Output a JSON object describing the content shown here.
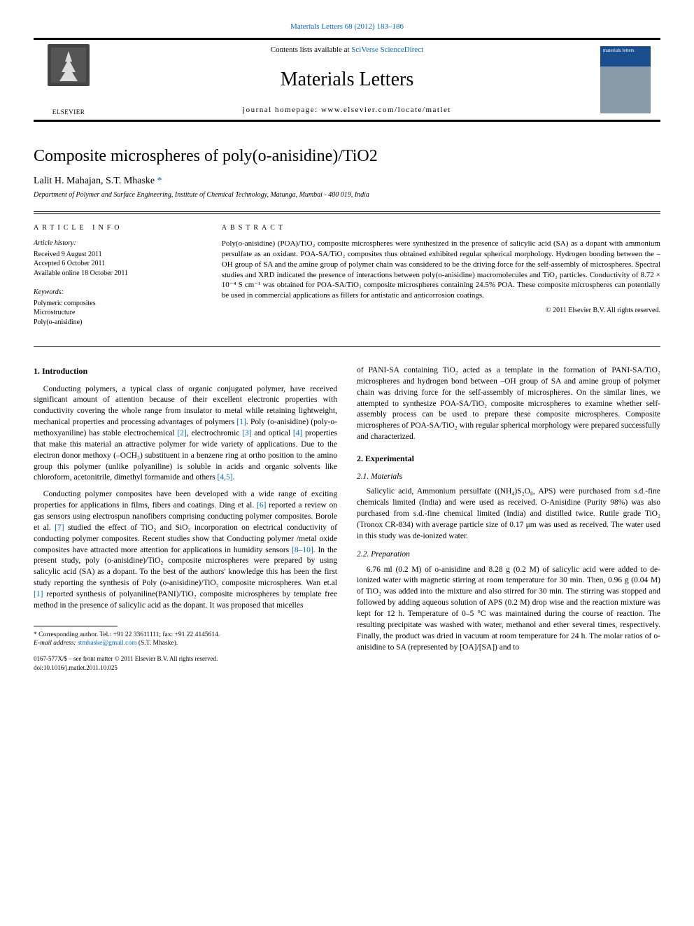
{
  "header": {
    "citation": "Materials Letters 68 (2012) 183–186",
    "contents_prefix": "Contents lists available at ",
    "contents_link": "SciVerse ScienceDirect",
    "journal_title": "Materials Letters",
    "homepage_label": "journal homepage: www.elsevier.com/locate/matlet",
    "publisher": "ELSEVIER",
    "cover_label": "materials letters"
  },
  "article": {
    "title": "Composite microspheres of poly(o-anisidine)/TiO2",
    "authors": "Lalit H. Mahajan, S.T. Mhaske",
    "corr_marker": "*",
    "affiliation": "Department of Polymer and Surface Engineering, Institute of Chemical Technology, Matunga, Mumbai - 400 019, India"
  },
  "meta": {
    "info_label": "article info",
    "history_label": "Article history:",
    "received": "Received 9 August 2011",
    "accepted": "Accepted 6 October 2011",
    "online": "Available online 18 October 2011",
    "keywords_label": "Keywords:",
    "keywords": [
      "Polymeric composites",
      "Microstructure",
      "Poly(o-anisidine)"
    ]
  },
  "abstract": {
    "label": "abstract",
    "text": "Poly(o-anisidine) (POA)/TiO₂ composite microspheres were synthesized in the presence of salicylic acid (SA) as a dopant with ammonium persulfate as an oxidant. POA-SA/TiO₂ composites thus obtained exhibited regular spherical morphology. Hydrogen bonding between the –OH group of SA and the amine group of polymer chain was considered to be the driving force for the self-assembly of microspheres. Spectral studies and XRD indicated the presence of interactions between poly(o-anisidine) macromolecules and TiO₂ particles. Conductivity of 8.72 × 10⁻⁴ S cm⁻¹ was obtained for POA-SA/TiO₂ composite microspheres containing 24.5% POA. These composite microspheres can potentially be used in commercial applications as fillers for antistatic and anticorrosion coatings.",
    "copyright": "© 2011 Elsevier B.V. All rights reserved."
  },
  "body": {
    "s1": {
      "heading": "1. Introduction",
      "p1": "Conducting polymers, a typical class of organic conjugated polymer, have received significant amount of attention because of their excellent electronic properties with conductivity covering the whole range from insulator to metal while retaining lightweight, mechanical properties and processing advantages of polymers [1]. Poly (o-anisidine) (poly-o-methoxyaniline) has stable electrochemical [2], electrochromic [3] and optical [4] properties that make this material an attractive polymer for wide variety of applications. Due to the electron donor methoxy (–OCH₃) substituent in a benzene ring at ortho position to the amino group this polymer (unlike polyaniline) is soluble in acids and organic solvents like chloroform, acetonitrile, dimethyl formamide and others [4,5].",
      "p2": "Conducting polymer composites have been developed with a wide range of exciting properties for applications in films, fibers and coatings. Ding et al. [6] reported a review on gas sensors using electrospun nanofibers comprising conducting polymer composites. Borole et al. [7] studied the effect of TiO₂ and SiO₂ incorporation on electrical conductivity of conducting polymer composites. Recent studies show that Conducting polymer /metal oxide composites have attracted more attention for applications in humidity sensors [8–10]. In the present study, poly (o-anisidine)/TiO₂ composite microspheres were prepared by using salicylic acid (SA) as a dopant. To the best of the authors' knowledge this has been the first study reporting the synthesis of Poly (o-anisidine)/TiO₂ composite microspheres. Wan et.al [1] reported synthesis of polyaniline(PANI)/TiO₂ composite microspheres by template free method in the presence of salicylic acid as the dopant. It was proposed that micelles",
      "p3": "of PANI-SA containing TiO₂ acted as a template in the formation of PANI-SA/TiO₂ microspheres and hydrogen bond between –OH group of SA and amine group of polymer chain was driving force for the self-assembly of microspheres. On the similar lines, we attempted to synthesize POA-SA/TiO₂ composite microspheres to examine whether self-assembly process can be used to prepare these composite microspheres. Composite microspheres of POA-SA/TiO₂ with regular spherical morphology were prepared successfully and characterized."
    },
    "s2": {
      "heading": "2. Experimental",
      "sub21": "2.1. Materials",
      "p21": "Salicylic acid, Ammonium persulfate ((NH₄)S₂O₈, APS) were purchased from s.d.-fine chemicals limited (India) and were used as received. O-Anisidine (Purity 98%) was also purchased from s.d.-fine chemical limited (India) and distilled twice. Rutile grade TiO₂ (Tronox CR-834) with average particle size of 0.17 μm was used as received. The water used in this study was de-ionized water.",
      "sub22": "2.2. Preparation",
      "p22": "6.76 ml (0.2 M) of o-anisidine and 8.28 g (0.2 M) of salicylic acid were added to de-ionized water with magnetic stirring at room temperature for 30 min. Then, 0.96 g (0.04 M) of TiO₂ was added into the mixture and also stirred for 30 min. The stirring was stopped and followed by adding aqueous solution of APS (0.2 M) drop wise and the reaction mixture was kept for 12 h. Temperature of 0–5 °C was maintained during the course of reaction. The resulting precipitate was washed with water, methanol and ether several times, respectively. Finally, the product was dried in vacuum at room temperature for 24 h. The molar ratios of o-anisidine to SA (represented by [OA]/[SA]) and to"
    }
  },
  "footnote": {
    "corr": "* Corresponding author. Tel.: +91 22 33611111; fax: +91 22 4145614.",
    "email_label": "E-mail address: ",
    "email": "stmhaske@gmail.com",
    "email_suffix": " (S.T. Mhaske).",
    "issn": "0167-577X/$ – see front matter © 2011 Elsevier B.V. All rights reserved.",
    "doi": "doi:10.1016/j.matlet.2011.10.025"
  },
  "colors": {
    "link": "#0066cc",
    "text": "#000000",
    "rule": "#000000",
    "cover_top": "#1a4d8f",
    "cover_bottom": "#8a9aa8"
  }
}
